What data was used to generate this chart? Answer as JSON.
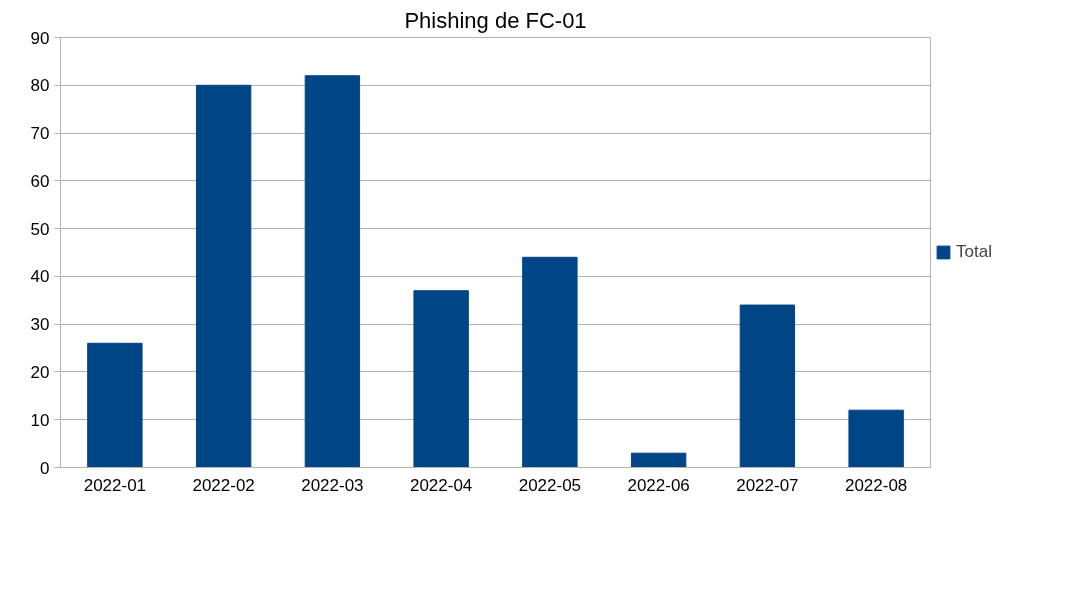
{
  "chart_data": {
    "type": "bar",
    "title": "Phishing de FC-01",
    "categories": [
      "2022-01",
      "2022-02",
      "2022-03",
      "2022-04",
      "2022-05",
      "2022-06",
      "2022-07",
      "2022-08"
    ],
    "series": [
      {
        "name": "Total",
        "color": "#004586",
        "values": [
          26,
          80,
          82,
          37,
          44,
          3,
          34,
          12
        ]
      }
    ],
    "ylim": [
      0,
      90
    ],
    "yticks": [
      0,
      10,
      20,
      30,
      40,
      50,
      60,
      70,
      80,
      90
    ],
    "grid": "y",
    "legend": "right"
  }
}
